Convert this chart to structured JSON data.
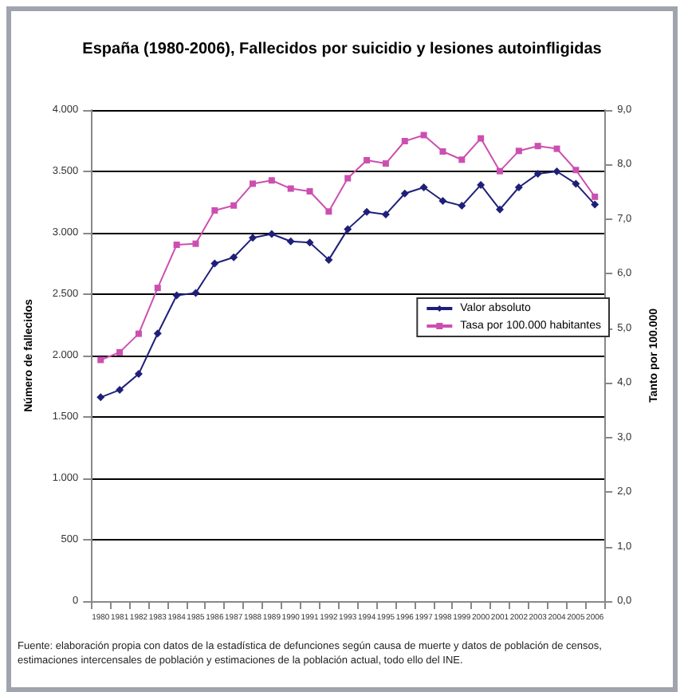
{
  "chart_data": {
    "type": "line",
    "title": "España (1980-2006), Fallecidos por suicidio y lesiones autoinfligidas",
    "ylabel": "Número de fallecidos",
    "y2label": "Tanto por 100.000",
    "categories": [
      "1980",
      "1981",
      "1982",
      "1983",
      "1984",
      "1985",
      "1986",
      "1987",
      "1988",
      "1989",
      "1990",
      "1991",
      "1992",
      "1993",
      "1994",
      "1995",
      "1996",
      "1997",
      "1998",
      "1999",
      "2000",
      "2001",
      "2002",
      "2003",
      "2004",
      "2005",
      "2006"
    ],
    "series": [
      {
        "name": "Valor absoluto",
        "color": "#1f1f7a",
        "marker": "diamond",
        "values": [
          1660,
          1720,
          1850,
          2180,
          2490,
          2510,
          2750,
          2800,
          2960,
          2990,
          2930,
          2920,
          2780,
          3030,
          3170,
          3150,
          3320,
          3370,
          3260,
          3220,
          3390,
          3190,
          3370,
          3480,
          3500,
          3400,
          3230
        ]
      },
      {
        "name": "Tasa por 100.000 habitantes",
        "color": "#cc4fb0",
        "marker": "square",
        "axis": "y2",
        "values": [
          4.42,
          4.56,
          4.9,
          5.74,
          6.53,
          6.55,
          7.16,
          7.25,
          7.65,
          7.71,
          7.56,
          7.51,
          7.14,
          7.75,
          8.08,
          8.02,
          8.43,
          8.54,
          8.24,
          8.09,
          8.48,
          7.88,
          8.25,
          8.34,
          8.29,
          7.9,
          7.41
        ]
      }
    ],
    "ylim": [
      0,
      4000
    ],
    "yticks": [
      {
        "value": 0,
        "label": "0"
      },
      {
        "value": 500,
        "label": "500"
      },
      {
        "value": 1000,
        "label": "1.000"
      },
      {
        "value": 1500,
        "label": "1.500"
      },
      {
        "value": 2000,
        "label": "2.000"
      },
      {
        "value": 2500,
        "label": "2.500"
      },
      {
        "value": 3000,
        "label": "3.000"
      },
      {
        "value": 3500,
        "label": "3.500"
      },
      {
        "value": 4000,
        "label": "4.000"
      }
    ],
    "y2lim": [
      0,
      9
    ],
    "y2ticks": [
      {
        "value": 0,
        "label": "0,0"
      },
      {
        "value": 1,
        "label": "1,0"
      },
      {
        "value": 2,
        "label": "2,0"
      },
      {
        "value": 3,
        "label": "3,0"
      },
      {
        "value": 4,
        "label": "4,0"
      },
      {
        "value": 5,
        "label": "5,0"
      },
      {
        "value": 6,
        "label": "6,0"
      },
      {
        "value": 7,
        "label": "7,0"
      },
      {
        "value": 8,
        "label": "8,0"
      },
      {
        "value": 9,
        "label": "9,0"
      }
    ],
    "grid": "y",
    "legend": "right",
    "line_style": "solid",
    "annotations": [
      "Fuente: elaboración propia con datos de la estadística de defunciones según causa de muerte y datos de población de censos, estimaciones intercensales de población y estimaciones de la población actual, todo ello del INE."
    ]
  }
}
